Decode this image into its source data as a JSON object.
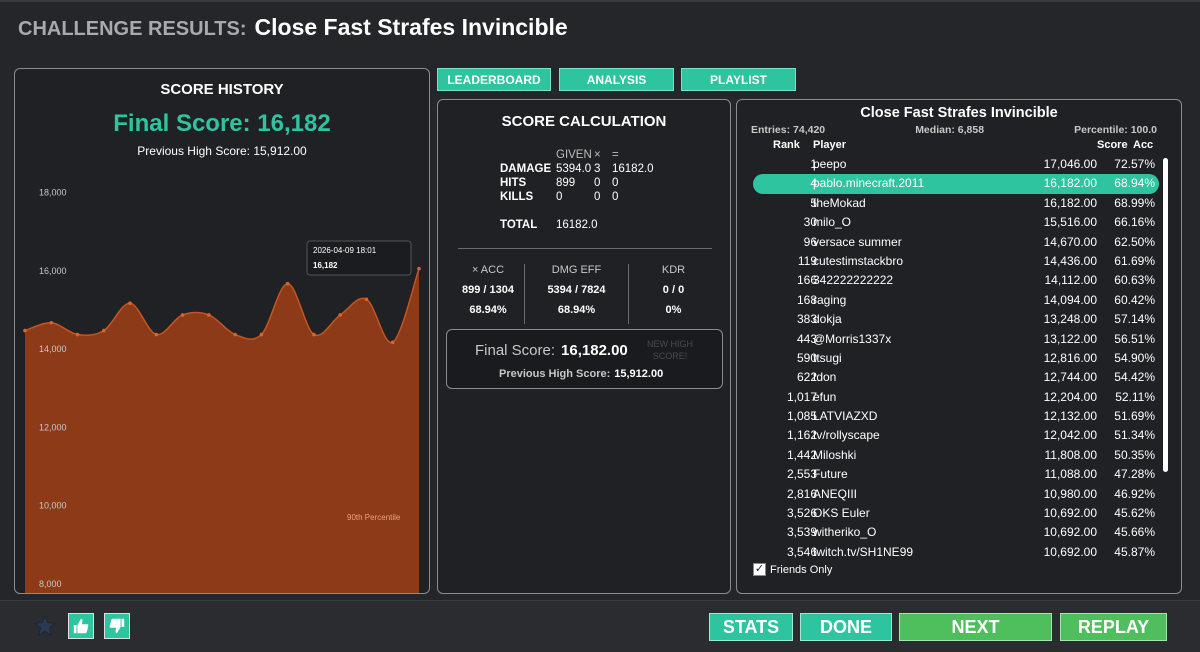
{
  "header": {
    "prefix": "CHALLENGE RESULTS:",
    "title": "Close Fast Strafes Invincible"
  },
  "tabs": [
    "LEADERBOARD",
    "ANALYSIS",
    "PLAYLIST"
  ],
  "history": {
    "heading": "SCORE HISTORY",
    "final_score": "Final Score: 16,182",
    "previous_high": "Previous High Score: 15,912.00",
    "tooltip_date": "2026-04-09 18:01",
    "tooltip_value": "16,182",
    "percentile_label": "90th Percentile"
  },
  "chart_data": {
    "type": "area",
    "x": [
      1,
      2,
      3,
      4,
      5,
      6,
      7,
      8,
      9,
      10,
      11,
      12,
      13,
      14,
      15,
      16
    ],
    "values": [
      14600,
      14800,
      14500,
      14600,
      15300,
      14500,
      15000,
      15000,
      14500,
      14500,
      15800,
      14500,
      15000,
      15400,
      14300,
      16182
    ],
    "ylim": [
      8000,
      18600
    ],
    "yticks": [
      "18,000",
      "16,000",
      "14,000",
      "12,000",
      "10,000",
      "8,000"
    ],
    "color": "#8c3a17"
  },
  "calc": {
    "heading": "SCORE CALCULATION",
    "col_given": "GIVEN",
    "col_x": "×",
    "col_eq": "=",
    "rows": [
      {
        "label": "DAMAGE",
        "given": "5394.0",
        "mult": "3",
        "result": "16182.0"
      },
      {
        "label": "HITS",
        "given": "899",
        "mult": "0",
        "result": "0"
      },
      {
        "label": "KILLS",
        "given": "0",
        "mult": "0",
        "result": "0"
      }
    ],
    "total_label": "TOTAL",
    "total_value": "16182.0",
    "stats": [
      {
        "label": "× ACC",
        "value": "899 / 1304",
        "sub": "68.94%"
      },
      {
        "label": "DMG EFF",
        "value": "5394 / 7824",
        "sub": "68.94%"
      },
      {
        "label": "KDR",
        "value": "0 / 0",
        "sub": "0%"
      }
    ],
    "final_label": "Final Score:",
    "final_value": "16,182.00",
    "new_high": "NEW HIGH SCORE!",
    "prev_label": "Previous High Score:",
    "prev_value": "15,912.00"
  },
  "leaderboard": {
    "title": "Close Fast Strafes Invincible",
    "entries": "Entries: 74,420",
    "median": "Median: 6,858",
    "percentile": "Percentile: 100.0",
    "headers": {
      "rank": "Rank",
      "player": "Player",
      "score": "Score",
      "acc": "Acc"
    },
    "rows": [
      {
        "rank": "1",
        "name": "peepo",
        "score": "17,046.00",
        "acc": "72.57%"
      },
      {
        "rank": "4",
        "name": "pablo.minecraft.2011",
        "score": "16,182.00",
        "acc": "68.94%"
      },
      {
        "rank": "5",
        "name": "theMokad",
        "score": "16,182.00",
        "acc": "68.99%"
      },
      {
        "rank": "30",
        "name": "milo_O",
        "score": "15,516.00",
        "acc": "66.16%"
      },
      {
        "rank": "96",
        "name": "versace summer",
        "score": "14,670.00",
        "acc": "62.50%"
      },
      {
        "rank": "119",
        "name": "cutestimstackbro",
        "score": "14,436.00",
        "acc": "61.69%"
      },
      {
        "rank": "166",
        "name": "342222222222",
        "score": "14,112.00",
        "acc": "60.63%"
      },
      {
        "rank": "168",
        "name": "raging",
        "score": "14,094.00",
        "acc": "60.42%"
      },
      {
        "rank": "383",
        "name": "dokja",
        "score": "13,248.00",
        "acc": "57.14%"
      },
      {
        "rank": "443",
        "name": "@Morris1337x",
        "score": "13,122.00",
        "acc": "56.51%"
      },
      {
        "rank": "590",
        "name": "ttsugi",
        "score": "12,816.00",
        "acc": "54.90%"
      },
      {
        "rank": "622",
        "name": "tdon",
        "score": "12,744.00",
        "acc": "54.42%"
      },
      {
        "rank": "1,017",
        "name": "efun",
        "score": "12,204.00",
        "acc": "52.11%"
      },
      {
        "rank": "1,085",
        "name": "LATVIAZXD",
        "score": "12,132.00",
        "acc": "51.69%"
      },
      {
        "rank": "1,162",
        "name": "tv/rollyscape",
        "score": "12,042.00",
        "acc": "51.34%"
      },
      {
        "rank": "1,442",
        "name": "Miloshki",
        "score": "11,808.00",
        "acc": "50.35%"
      },
      {
        "rank": "2,553",
        "name": "Future",
        "score": "11,088.00",
        "acc": "47.28%"
      },
      {
        "rank": "2,816",
        "name": "ANEQIII",
        "score": "10,980.00",
        "acc": "46.92%"
      },
      {
        "rank": "3,526",
        "name": "OKS Euler",
        "score": "10,692.00",
        "acc": "45.62%"
      },
      {
        "rank": "3,539",
        "name": "witheriko_O",
        "score": "10,692.00",
        "acc": "45.66%"
      },
      {
        "rank": "3,546",
        "name": "twitch.tv/SH1NE99",
        "score": "10,692.00",
        "acc": "45.87%"
      }
    ],
    "highlight_index": 1,
    "friends_only": "Friends Only"
  },
  "buttons": {
    "stats": "STATS",
    "done": "DONE",
    "next": "NEXT",
    "replay": "REPLAY"
  },
  "icons": {
    "star": "star-icon",
    "thumbs_up": "thumbs-up-icon",
    "thumbs_down": "thumbs-down-icon"
  },
  "colors": {
    "accent": "#2ec4a0",
    "green": "#4fbf5e",
    "chart_fill": "#8c3a17"
  }
}
